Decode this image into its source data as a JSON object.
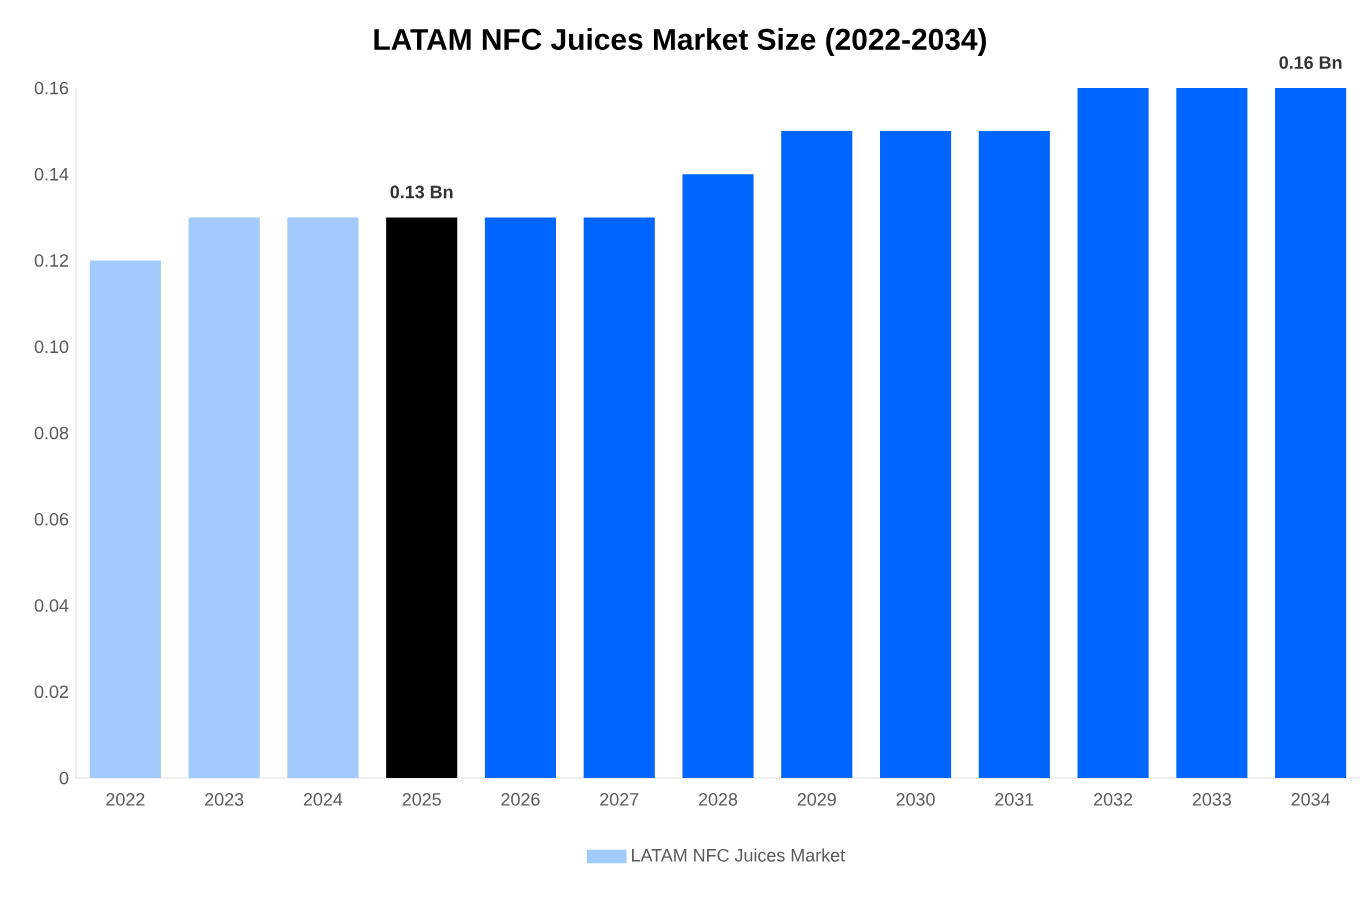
{
  "chart_data": {
    "type": "bar",
    "title": "LATAM NFC Juices Market Size (2022-2034)",
    "categories": [
      "2022",
      "2023",
      "2024",
      "2025",
      "2026",
      "2027",
      "2028",
      "2029",
      "2030",
      "2031",
      "2032",
      "2033",
      "2034"
    ],
    "series": [
      {
        "name": "LATAM NFC Juices Market",
        "color": "#a0cbfa",
        "values": [
          0.12,
          0.13,
          0.13,
          0.13,
          0.13,
          0.13,
          0.14,
          0.15,
          0.15,
          0.15,
          0.16,
          0.16,
          0.16
        ],
        "colors": [
          "#a0cbfa",
          "#a0cbfa",
          "#a0cbfa",
          "#000000",
          "#0066ff",
          "#0066ff",
          "#0066ff",
          "#0066ff",
          "#0066ff",
          "#0066ff",
          "#0066ff",
          "#0066ff",
          "#0066ff"
        ],
        "value_labels": [
          null,
          null,
          null,
          "0.13 Bn",
          null,
          null,
          null,
          null,
          null,
          null,
          null,
          null,
          "0.16 Bn"
        ]
      }
    ],
    "ylim": [
      0,
      0.16
    ],
    "yticks": [
      0,
      {
        "value": 0.02,
        "label": "0.02"
      },
      {
        "value": 0.04,
        "label": "0.04"
      },
      {
        "value": 0.06,
        "label": "0.06"
      },
      {
        "value": 0.08,
        "label": "0.08"
      },
      {
        "value": 0.1,
        "label": "0.10"
      },
      {
        "value": 0.12,
        "label": "0.12"
      },
      {
        "value": 0.14,
        "label": "0.14"
      },
      {
        "value": 0.16,
        "label": "0.16"
      }
    ],
    "grid": false,
    "legend": "bottom"
  }
}
